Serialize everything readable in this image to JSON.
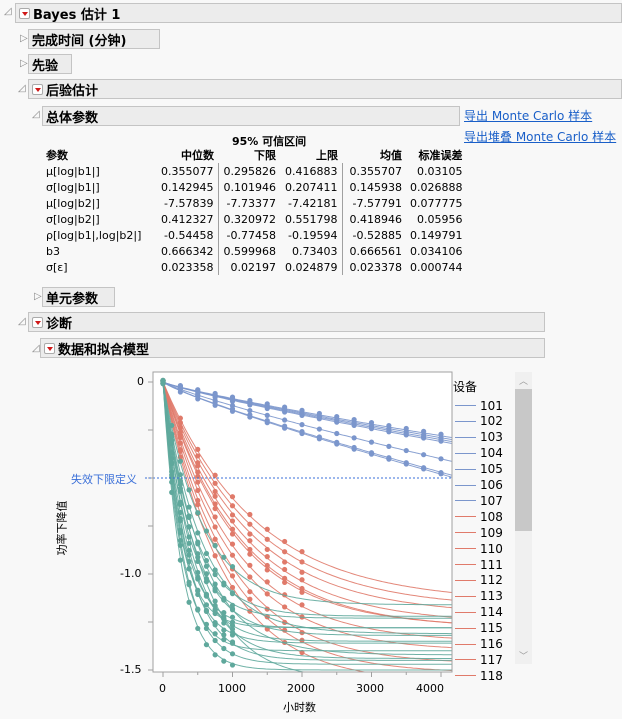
{
  "report": {
    "title": "Bayes 估计 1",
    "sections": {
      "completion_time": "完成时间 (分钟)",
      "prior": "先验",
      "posterior": "后验估计",
      "overall_params": "总体参数",
      "unit_params": "单元参数",
      "diagnostics": "诊断",
      "data_and_model": "数据和拟合模型"
    },
    "links": {
      "export_mc": "导出 Monte Carlo 样本",
      "export_stacked_mc": "导出堆叠 Monte Carlo 样本"
    }
  },
  "table": {
    "ci_title": "95% 可信区间",
    "headers": [
      "参数",
      "中位数",
      "下限",
      "上限",
      "均值",
      "标准误差"
    ],
    "rows": [
      [
        "μ[log|b1|]",
        "0.355077",
        "0.295826",
        "0.416883",
        "0.355707",
        "0.03105"
      ],
      [
        "σ[log|b1|]",
        "0.142945",
        "0.101946",
        "0.207411",
        "0.145938",
        "0.026888"
      ],
      [
        "μ[log|b2|]",
        "-7.57839",
        "-7.73377",
        "-7.42181",
        "-7.57791",
        "0.077775"
      ],
      [
        "σ[log|b2|]",
        "0.412327",
        "0.320972",
        "0.551798",
        "0.418946",
        "0.05956"
      ],
      [
        "ρ[log|b1|,log|b2|]",
        "-0.54458",
        "-0.77458",
        "-0.19594",
        "-0.52885",
        "0.149791"
      ],
      [
        "b3",
        "0.666342",
        "0.599968",
        "0.73403",
        "0.666561",
        "0.034106"
      ],
      [
        "σ[ε]",
        "0.023358",
        "0.02197",
        "0.024879",
        "0.023378",
        "0.000744"
      ]
    ]
  },
  "colors": {
    "blue": "#7b96cc",
    "red": "#e07a6a",
    "teal": "#5fa89c",
    "threshold": "#3a6fd8",
    "link": "#1a5fc8"
  },
  "chart_data": {
    "type": "line",
    "title": "数据和拟合模型",
    "xlabel": "小时数",
    "ylabel": "功率下降值",
    "xlim": [
      -150,
      4200
    ],
    "ylim": [
      -1.5,
      0.05
    ],
    "x_ticks": [
      "0",
      "1000",
      "2000",
      "3000",
      "4000"
    ],
    "y_ticks": [
      "0",
      "-1.0",
      "-1.5"
    ],
    "reference_line": {
      "y": -0.5,
      "label": "失效下限定义"
    },
    "legend_title": "设备",
    "legend": [
      {
        "name": "101",
        "color": "#7b96cc"
      },
      {
        "name": "102",
        "color": "#7b96cc"
      },
      {
        "name": "103",
        "color": "#7b96cc"
      },
      {
        "name": "104",
        "color": "#7b96cc"
      },
      {
        "name": "105",
        "color": "#7b96cc"
      },
      {
        "name": "106",
        "color": "#7b96cc"
      },
      {
        "name": "107",
        "color": "#7b96cc"
      },
      {
        "name": "108",
        "color": "#e07a6a"
      },
      {
        "name": "109",
        "color": "#e07a6a"
      },
      {
        "name": "110",
        "color": "#e07a6a"
      },
      {
        "name": "111",
        "color": "#e07a6a"
      },
      {
        "name": "112",
        "color": "#e07a6a"
      },
      {
        "name": "113",
        "color": "#e07a6a"
      },
      {
        "name": "114",
        "color": "#e07a6a"
      },
      {
        "name": "115",
        "color": "#e07a6a"
      },
      {
        "name": "116",
        "color": "#e07a6a"
      },
      {
        "name": "117",
        "color": "#e07a6a"
      },
      {
        "name": "118",
        "color": "#e07a6a"
      }
    ],
    "series_groups": [
      {
        "group": "blue",
        "color": "#7b96cc",
        "count": 7,
        "data_until": 4000,
        "end_values_at_4000": [
          -0.28,
          -0.29,
          -0.3,
          -0.31,
          -0.4,
          -0.47,
          -0.48
        ],
        "asymptote": null
      },
      {
        "group": "red",
        "color": "#e07a6a",
        "count": 11,
        "data_until": 2000,
        "end_values_at_4000": [
          -1.09,
          -1.13,
          -1.17,
          -1.22,
          -1.25,
          -1.25,
          -1.33,
          -1.38,
          -1.45,
          -1.5,
          -1.55
        ],
        "asymptote": null
      },
      {
        "group": "teal",
        "color": "#5fa89c",
        "count": 16,
        "data_until": 1000,
        "end_values_at_4000": [
          -1.16,
          -1.22,
          -1.23,
          -1.28,
          -1.28,
          -1.31,
          -1.32,
          -1.35,
          -1.36,
          -1.4,
          -1.42,
          -1.44,
          -1.45,
          -1.47,
          -1.5,
          -1.55
        ],
        "asymptote": true
      }
    ]
  }
}
